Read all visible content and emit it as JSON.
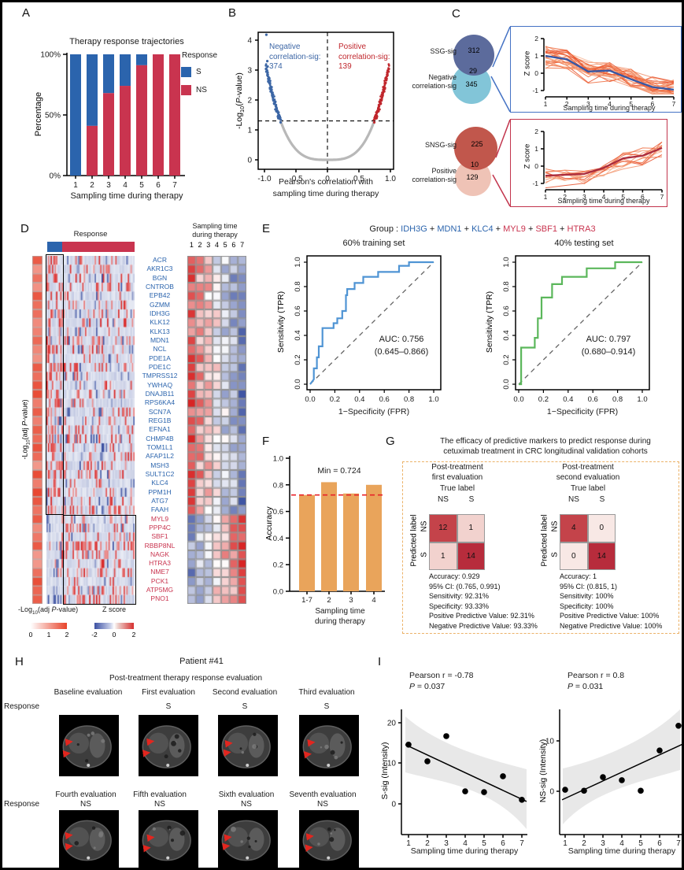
{
  "panel_letters": {
    "A": "A",
    "B": "B",
    "C": "C",
    "D": "D",
    "E": "E",
    "F": "F",
    "G": "G",
    "H": "H",
    "I": "I"
  },
  "chart_data": [
    {
      "id": "therapy_trajectories",
      "type": "bar",
      "stacked": true,
      "title": "Therapy response trajectories",
      "xlabel": "Sampling time during therapy",
      "ylabel": "Percentage",
      "categories": [
        "1",
        "2",
        "3",
        "4",
        "5",
        "6",
        "7"
      ],
      "yticks": [
        "100%",
        "50%",
        "0%"
      ],
      "legend_title": "Response",
      "series": [
        {
          "name": "S",
          "color": "#2b64ad",
          "values": [
            100,
            59,
            32,
            26,
            9,
            0,
            0
          ]
        },
        {
          "name": "NS",
          "color": "#c9344f",
          "values": [
            0,
            41,
            68,
            74,
            91,
            100,
            100
          ]
        }
      ]
    },
    {
      "id": "correlation_volcano",
      "type": "scatter",
      "xlabel": "Pearson's correlation with\nsampling time during therapy",
      "ylabel_parts": {
        "pre": "-Log",
        "sub": "10",
        "mid": "(",
        "italic": "P",
        "post": "-value)"
      },
      "xticks": [
        "-1.0",
        "-0.5",
        "0",
        "0.5",
        "1.0"
      ],
      "yticks": [
        "0",
        "1",
        "2",
        "3",
        "4"
      ],
      "xlim": [
        -1.05,
        1.05
      ],
      "ylim": [
        0,
        4.35
      ],
      "sig_threshold_y": 1.3,
      "sig_threshold_r": 0.745,
      "neg_label": "Negative\ncorrelation-sig:\n374",
      "neg_count": 374,
      "neg_color": "#3c66a5",
      "pos_label": "Positive\ncorrelation-sig:\n139",
      "pos_count": 139,
      "pos_color": "#c0272d",
      "nonsig_color": "#b8b8b8",
      "extra_points": [
        [
          -0.97,
          4.18
        ],
        [
          -0.955,
          3.3
        ],
        [
          -0.95,
          3.12
        ],
        [
          -0.94,
          2.62
        ]
      ]
    },
    {
      "id": "ssg_venn",
      "type": "venn",
      "circles": [
        {
          "label": "SSG-sig",
          "value": "312",
          "color": "#5c6b9c"
        },
        {
          "label": "Negative\ncorrelation-sig",
          "value": "345",
          "color": "#82c5d8"
        }
      ],
      "overlap": "29",
      "frame_color": "#4472c4"
    },
    {
      "id": "ssg_lines",
      "type": "line",
      "ylabel": "Z score",
      "xlabel": "Sampling time during therapy",
      "x": [
        "1",
        "2",
        "3",
        "4",
        "5",
        "6",
        "7"
      ],
      "yticks": [
        "-1",
        "0",
        "1",
        "2"
      ],
      "mean": [
        1.0,
        0.8,
        0.1,
        0.15,
        -0.35,
        -0.8,
        -0.95
      ],
      "mean_color": "#3558a6",
      "palette": [
        "#f2926c",
        "#ee6a3c",
        "#f7b28e",
        "#e8502a"
      ],
      "n_lines": 30,
      "noise": 0.5,
      "seed": 7
    },
    {
      "id": "snsg_venn",
      "type": "venn",
      "circles": [
        {
          "label": "SNSG-sig",
          "value": "225",
          "color": "#c1574c"
        },
        {
          "label": "Positive\ncorrelation-sig",
          "value": "129",
          "color": "#efc3b6"
        }
      ],
      "overlap": "10",
      "frame_color": "#c2344c"
    },
    {
      "id": "snsg_lines",
      "type": "line",
      "ylabel": "Z score",
      "xlabel": "Sampling time during therapy",
      "x": [
        "1",
        "2",
        "3",
        "4",
        "5",
        "6",
        "7"
      ],
      "yticks": [
        "-1",
        "0",
        "1",
        "2"
      ],
      "mean": [
        -0.55,
        -0.5,
        -0.45,
        -0.1,
        0.45,
        0.6,
        1.05
      ],
      "mean_color": "#aa2c3e",
      "palette": [
        "#f2926c",
        "#ee6a3c",
        "#f7b28e",
        "#e8502a"
      ],
      "n_lines": 13,
      "noise": 0.45,
      "seed": 21
    },
    {
      "id": "marker_heatmap",
      "type": "heatmap",
      "top_annotation": {
        "label": "Response",
        "groups": [
          {
            "name": "S",
            "color": "#2b64ad",
            "fraction": 0.17
          },
          {
            "name": "NS",
            "color": "#c9344f",
            "fraction": 0.83
          }
        ]
      },
      "row_annotation_parts": {
        "pre": "-Log",
        "sub": "10",
        "mid": "(adj ",
        "italic": "P",
        "post": "-value)"
      },
      "right_header": "Sampling time\nduring therapy",
      "right_columns": [
        "1",
        "2",
        "3",
        "4",
        "5",
        "6",
        "7"
      ],
      "s_genes": [
        "ACR",
        "AKR1C3",
        "BGN",
        "CNTROB",
        "EPB42",
        "GZMM",
        "IDH3G",
        "KLK12",
        "KLK13",
        "MDN1",
        "NCL",
        "PDE1A",
        "PDE1C",
        "TMPRSS12",
        "YWHAQ",
        "DNAJB11",
        "RPS6KA4",
        "SCN7A",
        "REG1B",
        "EFNA1",
        "CHMP4B",
        "TOM1L1",
        "AFAP1L2",
        "MSH3",
        "SULT1C2",
        "KLC4",
        "PPM1H",
        "ATG7",
        "FAAH"
      ],
      "ns_genes": [
        "MYL9",
        "PPP4C",
        "SBF1",
        "RBBP8NL",
        "NAGK",
        "HTRA3",
        "NME7",
        "PCK1",
        "ATP5MG",
        "PNO1"
      ],
      "s_gene_color": "#2b64ad",
      "ns_gene_color": "#c9344f",
      "legend_p": {
        "label_parts": {
          "pre": "-Log",
          "sub": "10",
          "mid": "(adj ",
          "italic": "P",
          "post": "-value)"
        },
        "ticks": [
          "0",
          "1",
          "2"
        ]
      },
      "legend_z": {
        "label": "Z score",
        "ticks": [
          "-2",
          "0",
          "2"
        ]
      },
      "seed": 3
    },
    {
      "id": "roc_training",
      "type": "line",
      "title": "60% training set",
      "color": "#4f94d4",
      "xlabel": "1−Specificity (FPR)",
      "ylabel": "Sensitivity (TPR)",
      "ticks": [
        "0.0",
        "0.2",
        "0.4",
        "0.6",
        "0.8",
        "1.0"
      ],
      "auc_label": "AUC: 0.756",
      "ci_label": "(0.645–0.866)",
      "points": [
        [
          0,
          0
        ],
        [
          0.03,
          0.04
        ],
        [
          0.03,
          0.13
        ],
        [
          0.055,
          0.13
        ],
        [
          0.055,
          0.22
        ],
        [
          0.07,
          0.22
        ],
        [
          0.07,
          0.31
        ],
        [
          0.1,
          0.31
        ],
        [
          0.1,
          0.46
        ],
        [
          0.19,
          0.46
        ],
        [
          0.19,
          0.5
        ],
        [
          0.22,
          0.5
        ],
        [
          0.22,
          0.54
        ],
        [
          0.26,
          0.54
        ],
        [
          0.26,
          0.6
        ],
        [
          0.29,
          0.6
        ],
        [
          0.29,
          0.73
        ],
        [
          0.3,
          0.73
        ],
        [
          0.3,
          0.78
        ],
        [
          0.36,
          0.78
        ],
        [
          0.36,
          0.83
        ],
        [
          0.43,
          0.83
        ],
        [
          0.43,
          0.88
        ],
        [
          0.55,
          0.88
        ],
        [
          0.55,
          0.92
        ],
        [
          0.72,
          0.92
        ],
        [
          0.72,
          0.97
        ],
        [
          0.8,
          0.97
        ],
        [
          0.8,
          1
        ],
        [
          1,
          1
        ]
      ]
    },
    {
      "id": "roc_testing",
      "type": "line",
      "title": "40% testing set",
      "color": "#5bb75b",
      "xlabel": "1−Specificity (FPR)",
      "ylabel": "Sensitivity (TPR)",
      "ticks": [
        "0.0",
        "0.2",
        "0.4",
        "0.6",
        "0.8",
        "1.0"
      ],
      "auc_label": "AUC: 0.797",
      "ci_label": "(0.680–0.914)",
      "points": [
        [
          0,
          0
        ],
        [
          0.02,
          0
        ],
        [
          0.02,
          0.3
        ],
        [
          0.13,
          0.3
        ],
        [
          0.13,
          0.38
        ],
        [
          0.155,
          0.38
        ],
        [
          0.155,
          0.54
        ],
        [
          0.185,
          0.54
        ],
        [
          0.185,
          0.71
        ],
        [
          0.27,
          0.71
        ],
        [
          0.27,
          0.82
        ],
        [
          0.35,
          0.82
        ],
        [
          0.35,
          0.88
        ],
        [
          0.55,
          0.88
        ],
        [
          0.55,
          0.95
        ],
        [
          0.78,
          0.95
        ],
        [
          0.78,
          1
        ],
        [
          1,
          1
        ]
      ]
    },
    {
      "id": "accuracy_bars",
      "type": "bar",
      "ylabel": "Accuracy",
      "xlabel": "Sampling time\nduring therapy",
      "categories": [
        "1-7",
        "2",
        "3",
        "4"
      ],
      "values": [
        0.724,
        0.82,
        0.735,
        0.8
      ],
      "yticks": [
        "0.0",
        "0.2",
        "0.4",
        "0.6",
        "0.8",
        "1.0"
      ],
      "ylim": [
        0,
        1
      ],
      "bar_color": "#e9a45b",
      "min_line": 0.724,
      "min_label": "Min = 0.724",
      "min_line_color": "#e8232a"
    },
    {
      "id": "confusion_first",
      "type": "heatmap",
      "title": "Post-treatment\nfirst evaluation",
      "col_title": "True label",
      "row_title": "Predicted label",
      "col_labels": [
        "NS",
        "S"
      ],
      "row_labels": [
        "NS",
        "S"
      ],
      "values": [
        [
          12,
          1
        ],
        [
          1,
          14
        ]
      ],
      "cell_colors": [
        [
          "#c4434a",
          "#f2d2ce"
        ],
        [
          "#f2d2ce",
          "#b72c3c"
        ]
      ],
      "stats": [
        "Accuracy: 0.929",
        "95% CI: (0.765, 0.991)",
        "Sensitivity: 92.31%",
        "Specificity: 93.33%",
        "Positive Predictive Value: 92.31%",
        "Negative Predictive Value: 93.33%"
      ]
    },
    {
      "id": "confusion_second",
      "type": "heatmap",
      "title": "Post-treatment\nsecond evaluation",
      "col_title": "True label",
      "row_title": "Predicted label",
      "col_labels": [
        "NS",
        "S"
      ],
      "row_labels": [
        "NS",
        "S"
      ],
      "values": [
        [
          4,
          0
        ],
        [
          0,
          14
        ]
      ],
      "cell_colors": [
        [
          "#c4434a",
          "#f8e8e5"
        ],
        [
          "#f8e8e5",
          "#b72c3c"
        ]
      ],
      "stats": [
        "Accuracy: 1",
        "95% CI: (0.815, 1)",
        "Sensitivity: 100%",
        "Specificity: 100%",
        "Positive Predictive Value: 100%",
        "Negative Predictive Value: 100%"
      ]
    },
    {
      "id": "s_sig_scatter",
      "type": "scatter",
      "annotation_r": "Pearson r = -0.78",
      "annotation_p_italic": "P",
      "annotation_p_rest": " = 0.037",
      "ylabel": "S-sig (Intensity)",
      "xlabel": "Sampling time during therapy",
      "x": [
        1,
        2,
        3,
        4,
        5,
        6,
        7
      ],
      "y": [
        14.6,
        10.5,
        16.7,
        3.1,
        2.9,
        6.8,
        1.0
      ],
      "yticks": [
        "20",
        "10",
        "0"
      ],
      "xticks": [
        "1",
        "2",
        "3",
        "4",
        "5",
        "6",
        "7"
      ],
      "trend": [
        [
          1,
          14.6
        ],
        [
          7,
          0.6
        ]
      ]
    },
    {
      "id": "ns_sig_scatter",
      "type": "scatter",
      "annotation_r": "Pearson r = 0.8",
      "annotation_p_italic": "P",
      "annotation_p_rest": " = 0.031",
      "ylabel": "NS-sig (Intensity)",
      "xlabel": "Sampling time during therapy",
      "x": [
        1,
        2,
        3,
        4,
        5,
        6,
        7
      ],
      "y": [
        0.3,
        0.1,
        2.8,
        2.2,
        0.1,
        8.1,
        13.0
      ],
      "yticks": [
        "10",
        "0"
      ],
      "xticks": [
        "1",
        "2",
        "3",
        "4",
        "5",
        "6",
        "7"
      ],
      "trend": [
        [
          1,
          -1.7
        ],
        [
          7,
          9.4
        ]
      ]
    }
  ],
  "panel_e": {
    "group_prefix": "Group : ",
    "separator": " + ",
    "genes": [
      {
        "name": "IDH3G",
        "color": "#2b64ad"
      },
      {
        "name": "MDN1",
        "color": "#2b64ad"
      },
      {
        "name": "KLC4",
        "color": "#2b64ad"
      },
      {
        "name": "MYL9",
        "color": "#c9344f"
      },
      {
        "name": "SBF1",
        "color": "#c9344f"
      },
      {
        "name": "HTRA3",
        "color": "#c9344f"
      }
    ]
  },
  "panel_g": {
    "title": "The efficacy of predictive markers to predict response during\ncetuximab treatment in CRC longitudinal validation cohorts",
    "box_color": "#ecb268"
  },
  "panel_h": {
    "title": "Patient #41",
    "subtitle": "Post-treatment therapy response evaluation",
    "row_label": "Response",
    "rows": [
      {
        "evaluations": [
          {
            "title": "Baseline evaluation",
            "response": ""
          },
          {
            "title": "First evaluation",
            "response": "S"
          },
          {
            "title": "Second evaluation",
            "response": "S"
          },
          {
            "title": "Third evaluation",
            "response": "S"
          }
        ]
      },
      {
        "evaluations": [
          {
            "title": "Fourth evaluation",
            "response": "NS"
          },
          {
            "title": "Fifth evaluation",
            "response": "NS"
          },
          {
            "title": "Sixth evaluation",
            "response": "NS"
          },
          {
            "title": "Seventh evaluation",
            "response": "NS"
          }
        ]
      }
    ]
  }
}
